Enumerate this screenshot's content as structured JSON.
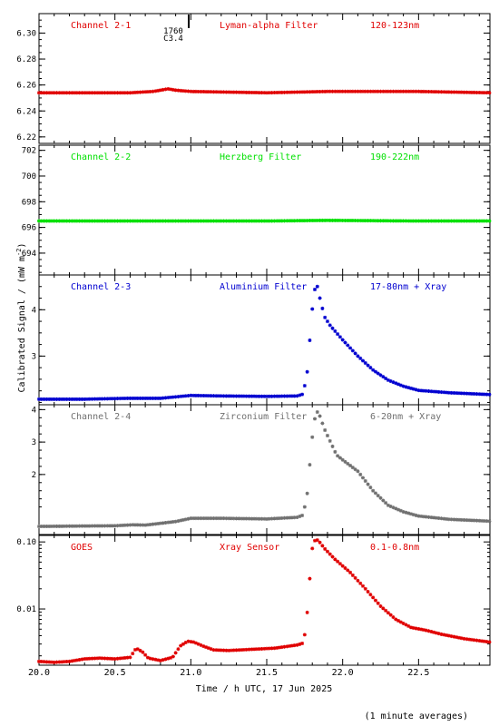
{
  "figure": {
    "ylabel": "Calibrated Signal / (mW m",
    "ylabel_sup": "-2",
    "ylabel_close": ")",
    "xlabel": "Time / h UTC, 17 Jun 2025",
    "footer": "(1 minute averages)",
    "event_label_1": "1760",
    "event_label_2": "C3.4"
  },
  "chart_data": [
    {
      "type": "scatter",
      "panel": "Channel 2-1",
      "labels": [
        "Channel 2-1",
        "Lyman-alpha Filter",
        "120-123nm"
      ],
      "color": "#e00000",
      "xlim": [
        20.0,
        22.97
      ],
      "ylim": [
        6.215,
        6.315
      ],
      "yticks": [
        6.22,
        6.24,
        6.26,
        6.28,
        6.3
      ],
      "ytick_labels": [
        "6.22",
        "6.24",
        "6.26",
        "6.28",
        "6.30"
      ],
      "x": [
        20.0,
        20.6,
        20.75,
        20.8,
        20.85,
        20.9,
        21.0,
        21.5,
        21.9,
        22.5,
        22.97
      ],
      "y": [
        6.254,
        6.254,
        6.255,
        6.256,
        6.257,
        6.256,
        6.255,
        6.254,
        6.255,
        6.255,
        6.254
      ]
    },
    {
      "type": "scatter",
      "panel": "Channel 2-2",
      "labels": [
        "Channel 2-2",
        "Herzberg Filter",
        "190-222nm"
      ],
      "color": "#00e000",
      "xlim": [
        20.0,
        22.97
      ],
      "ylim": [
        692.3,
        702.4
      ],
      "yticks": [
        694,
        696,
        698,
        700,
        702
      ],
      "ytick_labels": [
        "694",
        "696",
        "698",
        "700",
        "702"
      ],
      "x": [
        20.0,
        20.6,
        21.0,
        21.5,
        21.9,
        22.5,
        22.97
      ],
      "y": [
        696.5,
        696.5,
        696.5,
        696.5,
        696.55,
        696.5,
        696.5
      ]
    },
    {
      "type": "scatter",
      "panel": "Channel 2-3",
      "labels": [
        "Channel 2-3",
        "Aluminium Filter",
        "17-80nm + Xray"
      ],
      "color": "#0000d0",
      "xlim": [
        20.0,
        22.97
      ],
      "ylim": [
        1.95,
        4.75
      ],
      "yticks": [
        3,
        4
      ],
      "ytick_labels": [
        "3",
        "4"
      ],
      "x": [
        20.0,
        20.3,
        20.6,
        20.8,
        20.9,
        21.0,
        21.2,
        21.5,
        21.7,
        21.74,
        21.77,
        21.79,
        21.81,
        21.83,
        21.85,
        21.88,
        21.92,
        21.96,
        22.0,
        22.1,
        22.2,
        22.3,
        22.4,
        22.5,
        22.7,
        22.97
      ],
      "y": [
        2.07,
        2.07,
        2.09,
        2.09,
        2.12,
        2.15,
        2.14,
        2.13,
        2.14,
        2.18,
        2.72,
        3.65,
        4.38,
        4.55,
        4.25,
        3.85,
        3.65,
        3.5,
        3.35,
        3.0,
        2.7,
        2.48,
        2.35,
        2.26,
        2.21,
        2.17
      ]
    },
    {
      "type": "scatter",
      "panel": "Channel 2-4",
      "labels": [
        "Channel 2-4",
        "Zirconium Filter",
        "6-20nm + Xray"
      ],
      "color": "#707070",
      "xlim": [
        20.0,
        22.97
      ],
      "ylim": [
        0.15,
        4.15
      ],
      "yticks": [
        2,
        3,
        4
      ],
      "ytick_labels": [
        "2",
        "3",
        "4"
      ],
      "x": [
        20.0,
        20.5,
        20.62,
        20.7,
        20.9,
        21.0,
        21.2,
        21.5,
        21.7,
        21.74,
        21.77,
        21.79,
        21.81,
        21.83,
        21.85,
        21.88,
        21.92,
        21.96,
        22.0,
        22.1,
        22.2,
        22.3,
        22.4,
        22.5,
        22.7,
        22.97
      ],
      "y": [
        0.4,
        0.42,
        0.45,
        0.44,
        0.55,
        0.65,
        0.65,
        0.63,
        0.68,
        0.75,
        1.5,
        2.7,
        3.6,
        3.95,
        3.8,
        3.4,
        3.0,
        2.6,
        2.45,
        2.1,
        1.5,
        1.05,
        0.85,
        0.72,
        0.62,
        0.56
      ]
    },
    {
      "type": "scatter",
      "panel": "GOES",
      "labels": [
        "GOES",
        "Xray Sensor",
        "0.1-0.8nm"
      ],
      "color": "#e00000",
      "scale": "log",
      "xlim": [
        20.0,
        22.97
      ],
      "ylim": [
        0.00145,
        0.125
      ],
      "yticks": [
        0.01,
        0.1
      ],
      "ytick_labels": [
        "0.01",
        "0.10"
      ],
      "x": [
        20.0,
        20.1,
        20.2,
        20.3,
        20.4,
        20.5,
        20.6,
        20.64,
        20.68,
        20.72,
        20.8,
        20.88,
        20.93,
        20.98,
        21.02,
        21.08,
        21.15,
        21.25,
        21.4,
        21.55,
        21.7,
        21.74,
        21.76,
        21.78,
        21.8,
        21.82,
        21.84,
        21.88,
        21.95,
        22.05,
        22.15,
        22.25,
        22.35,
        22.45,
        22.55,
        22.65,
        22.8,
        22.97
      ],
      "y": [
        0.00165,
        0.0016,
        0.00165,
        0.0018,
        0.00185,
        0.0018,
        0.0019,
        0.0026,
        0.0023,
        0.00185,
        0.0017,
        0.0019,
        0.0028,
        0.0033,
        0.0032,
        0.0028,
        0.00245,
        0.0024,
        0.0025,
        0.0026,
        0.0029,
        0.0031,
        0.0055,
        0.023,
        0.08,
        0.11,
        0.105,
        0.08,
        0.055,
        0.035,
        0.02,
        0.011,
        0.007,
        0.0053,
        0.0048,
        0.0042,
        0.0036,
        0.0032
      ]
    }
  ],
  "x_axis": {
    "ticks": [
      20.0,
      20.5,
      21.0,
      21.5,
      22.0,
      22.5
    ],
    "tick_labels": [
      "20.0",
      "20.5",
      "21.0",
      "21.5",
      "22.0",
      "22.5"
    ]
  }
}
